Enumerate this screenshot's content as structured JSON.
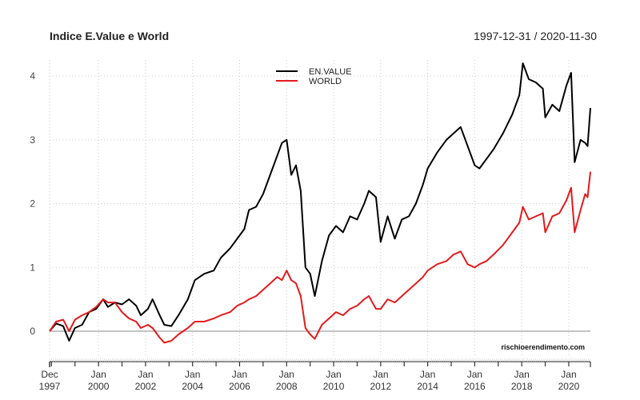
{
  "chart_data": {
    "type": "line",
    "title": "Indice E.Value e  World",
    "date_range_label": "1997-12-31 / 2020-11-30",
    "source_label": "rischioerendimento.com",
    "xlabel": "",
    "ylabel": "",
    "ylim": [
      -0.45,
      4.3
    ],
    "xlim": [
      1997.92,
      2020.92
    ],
    "grid": true,
    "legend_position": "top-center",
    "y_ticks": [
      {
        "value": 0,
        "label": "0"
      },
      {
        "value": 1,
        "label": "1"
      },
      {
        "value": 2,
        "label": "2"
      },
      {
        "value": 3,
        "label": "3"
      },
      {
        "value": 4,
        "label": "4"
      }
    ],
    "x_ticks": [
      {
        "value": 1997.92,
        "line1": "Dec",
        "line2": "1997"
      },
      {
        "value": 2000.0,
        "line1": "Jan",
        "line2": "2000"
      },
      {
        "value": 2002.0,
        "line1": "Jan",
        "line2": "2002"
      },
      {
        "value": 2004.0,
        "line1": "Jan",
        "line2": "2004"
      },
      {
        "value": 2006.0,
        "line1": "Jan",
        "line2": "2006"
      },
      {
        "value": 2008.0,
        "line1": "Jan",
        "line2": "2008"
      },
      {
        "value": 2010.0,
        "line1": "Jan",
        "line2": "2010"
      },
      {
        "value": 2012.0,
        "line1": "Jan",
        "line2": "2012"
      },
      {
        "value": 2014.0,
        "line1": "Jan",
        "line2": "2014"
      },
      {
        "value": 2016.0,
        "line1": "Jan",
        "line2": "2016"
      },
      {
        "value": 2018.0,
        "line1": "Jan",
        "line2": "2018"
      },
      {
        "value": 2020.0,
        "line1": "Jan",
        "line2": "2020"
      }
    ],
    "x": [
      1997.92,
      1998.2,
      1998.5,
      1998.75,
      1999.0,
      1999.3,
      1999.6,
      1999.9,
      2000.2,
      2000.4,
      2000.7,
      2001.0,
      2001.3,
      2001.6,
      2001.8,
      2002.1,
      2002.3,
      2002.6,
      2002.8,
      2003.1,
      2003.4,
      2003.8,
      2004.1,
      2004.5,
      2004.9,
      2005.2,
      2005.6,
      2005.9,
      2006.2,
      2006.4,
      2006.7,
      2007.0,
      2007.3,
      2007.6,
      2007.8,
      2008.0,
      2008.2,
      2008.4,
      2008.6,
      2008.8,
      2009.0,
      2009.2,
      2009.5,
      2009.8,
      2010.1,
      2010.4,
      2010.7,
      2011.0,
      2011.3,
      2011.5,
      2011.8,
      2012.0,
      2012.3,
      2012.6,
      2012.9,
      2013.2,
      2013.5,
      2013.8,
      2014.0,
      2014.4,
      2014.8,
      2015.1,
      2015.4,
      2015.7,
      2016.0,
      2016.2,
      2016.5,
      2016.8,
      2017.2,
      2017.6,
      2017.9,
      2018.05,
      2018.3,
      2018.6,
      2018.9,
      2019.0,
      2019.3,
      2019.6,
      2019.9,
      2020.1,
      2020.25,
      2020.5,
      2020.7,
      2020.8,
      2020.92
    ],
    "series": [
      {
        "name": "EN.VALUE",
        "color": "#000000",
        "values": [
          0.0,
          0.12,
          0.08,
          -0.15,
          0.05,
          0.1,
          0.3,
          0.35,
          0.5,
          0.38,
          0.45,
          0.42,
          0.5,
          0.4,
          0.25,
          0.35,
          0.5,
          0.25,
          0.1,
          0.08,
          0.25,
          0.5,
          0.8,
          0.9,
          0.95,
          1.15,
          1.3,
          1.45,
          1.6,
          1.9,
          1.95,
          2.15,
          2.45,
          2.75,
          2.95,
          3.0,
          2.45,
          2.6,
          2.2,
          1.0,
          0.9,
          0.55,
          1.1,
          1.5,
          1.65,
          1.55,
          1.8,
          1.75,
          2.0,
          2.2,
          2.1,
          1.4,
          1.8,
          1.45,
          1.75,
          1.8,
          2.0,
          2.3,
          2.55,
          2.8,
          3.0,
          3.1,
          3.2,
          2.9,
          2.6,
          2.55,
          2.7,
          2.85,
          3.1,
          3.4,
          3.7,
          4.2,
          3.95,
          3.9,
          3.8,
          3.35,
          3.55,
          3.45,
          3.85,
          4.05,
          2.65,
          3.0,
          2.95,
          2.9,
          3.5
        ]
      },
      {
        "name": "WORLD",
        "color": "#e31a1c",
        "values": [
          0.0,
          0.15,
          0.18,
          0.0,
          0.18,
          0.25,
          0.3,
          0.38,
          0.5,
          0.45,
          0.45,
          0.3,
          0.2,
          0.15,
          0.05,
          0.1,
          0.05,
          -0.1,
          -0.18,
          -0.15,
          -0.05,
          0.05,
          0.15,
          0.15,
          0.2,
          0.25,
          0.3,
          0.4,
          0.45,
          0.5,
          0.55,
          0.65,
          0.75,
          0.85,
          0.8,
          0.95,
          0.8,
          0.75,
          0.55,
          0.05,
          -0.05,
          -0.12,
          0.1,
          0.2,
          0.3,
          0.25,
          0.35,
          0.4,
          0.5,
          0.55,
          0.35,
          0.35,
          0.5,
          0.45,
          0.55,
          0.65,
          0.75,
          0.85,
          0.95,
          1.05,
          1.1,
          1.2,
          1.25,
          1.05,
          1.0,
          1.05,
          1.1,
          1.2,
          1.35,
          1.55,
          1.7,
          1.95,
          1.75,
          1.8,
          1.85,
          1.55,
          1.8,
          1.85,
          2.05,
          2.25,
          1.55,
          1.9,
          2.15,
          2.1,
          2.5
        ]
      }
    ]
  }
}
